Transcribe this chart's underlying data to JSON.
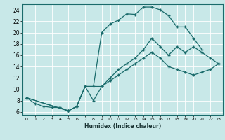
{
  "xlabel": "Humidex (Indice chaleur)",
  "bg_color": "#c8e8e8",
  "grid_color": "#b0d0d0",
  "line_color": "#1a6b6b",
  "xlim": [
    -0.5,
    23.5
  ],
  "ylim": [
    5.5,
    25.0
  ],
  "xticks": [
    0,
    1,
    2,
    3,
    4,
    5,
    6,
    7,
    8,
    9,
    10,
    11,
    12,
    13,
    14,
    15,
    16,
    17,
    18,
    19,
    20,
    21,
    22,
    23
  ],
  "yticks": [
    6,
    8,
    10,
    12,
    14,
    16,
    18,
    20,
    22,
    24
  ],
  "line1_x": [
    0,
    1,
    2,
    3,
    4,
    5,
    6,
    7,
    8,
    9,
    10,
    11,
    12,
    13,
    14,
    15,
    16,
    17,
    18,
    19,
    20,
    21
  ],
  "line1_y": [
    8.5,
    7.5,
    7.0,
    6.8,
    6.8,
    6.2,
    7.0,
    10.5,
    10.5,
    20.0,
    21.5,
    22.2,
    23.3,
    23.2,
    24.5,
    24.5,
    24.0,
    23.0,
    21.0,
    21.0,
    19.0,
    17.0
  ],
  "line2_x": [
    0,
    5,
    6,
    7,
    8,
    9,
    10,
    11,
    12,
    13,
    14,
    15,
    16,
    17,
    18,
    19,
    20,
    21,
    22,
    23
  ],
  "line2_y": [
    8.5,
    6.2,
    7.0,
    10.5,
    8.0,
    10.5,
    12.0,
    13.5,
    14.5,
    15.5,
    17.0,
    19.0,
    17.5,
    16.0,
    17.5,
    16.5,
    17.5,
    16.5,
    15.5,
    14.5
  ],
  "line3_x": [
    0,
    5,
    6,
    7,
    9,
    10,
    11,
    12,
    13,
    14,
    15,
    16,
    17,
    18,
    19,
    20,
    21,
    22,
    23
  ],
  "line3_y": [
    8.5,
    6.2,
    7.0,
    10.5,
    10.5,
    11.5,
    12.5,
    13.5,
    14.5,
    15.5,
    16.5,
    15.5,
    14.0,
    13.5,
    13.0,
    12.5,
    13.0,
    13.5,
    14.5
  ]
}
